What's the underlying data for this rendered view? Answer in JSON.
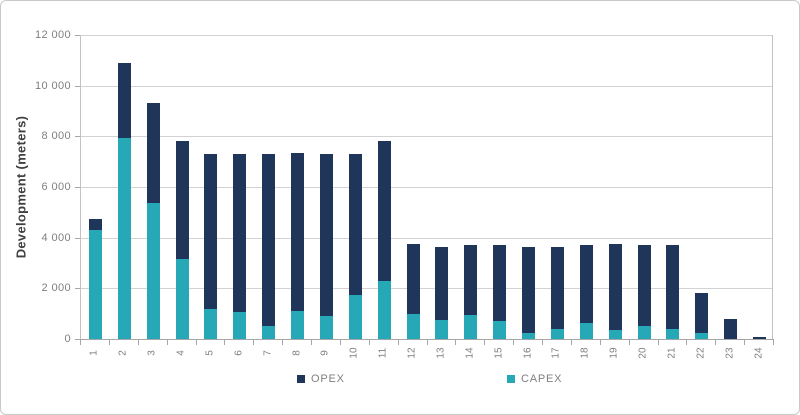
{
  "chart_data": {
    "type": "bar",
    "stacked": true,
    "title": "",
    "xlabel": "",
    "ylabel": "Development (meters)",
    "ylim": [
      0,
      12000
    ],
    "ytick_step": 2000,
    "yticks": [
      {
        "value": 0,
        "label": "0"
      },
      {
        "value": 2000,
        "label": "2 000"
      },
      {
        "value": 4000,
        "label": "4 000"
      },
      {
        "value": 6000,
        "label": "6 000"
      },
      {
        "value": 8000,
        "label": "8 000"
      },
      {
        "value": 10000,
        "label": "10 000"
      },
      {
        "value": 12000,
        "label": "12 000"
      }
    ],
    "categories": [
      "1",
      "2",
      "3",
      "4",
      "5",
      "6",
      "7",
      "8",
      "9",
      "10",
      "11",
      "12",
      "13",
      "14",
      "15",
      "16",
      "17",
      "18",
      "19",
      "20",
      "21",
      "22",
      "23",
      "24"
    ],
    "series": [
      {
        "name": "OPEX",
        "color": "#20355a",
        "values": [
          450,
          2950,
          3950,
          4650,
          6100,
          6250,
          6800,
          6250,
          6400,
          5550,
          5500,
          2750,
          2900,
          2750,
          3000,
          3400,
          3250,
          3050,
          3400,
          3200,
          3300,
          1550,
          800,
          80
        ]
      },
      {
        "name": "CAPEX",
        "color": "#27a8b7",
        "values": [
          4300,
          7950,
          5350,
          3150,
          1200,
          1050,
          500,
          1100,
          900,
          1750,
          2300,
          1000,
          750,
          950,
          700,
          250,
          400,
          650,
          350,
          500,
          400,
          250,
          0,
          0
        ]
      }
    ],
    "stack_order_bottom_to_top": [
      "CAPEX",
      "OPEX"
    ],
    "legend_position": "bottom",
    "grid": "horizontal"
  },
  "style": {
    "gridline_color": "#d2d2d2",
    "axis_color": "#a6a6a6",
    "tick_label_color": "#7f7f7f",
    "axis_title_color": "#404040",
    "background": "#ffffff",
    "card_border": "#c9c9c9"
  }
}
